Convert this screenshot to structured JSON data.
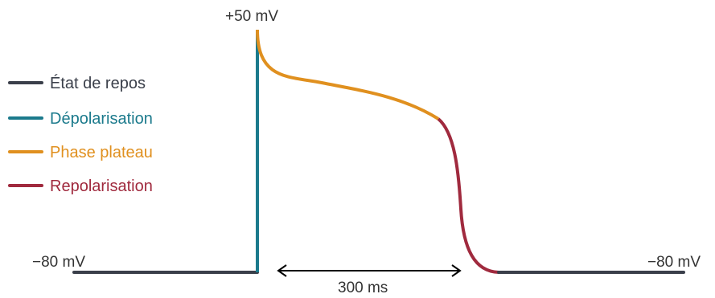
{
  "labels": {
    "peak": "+50 mV",
    "rest_left": "−80 mV",
    "rest_right": "−80 mV",
    "duration": "300 ms"
  },
  "legend": [
    {
      "label": "État de repos",
      "color": "#3a3f4a"
    },
    {
      "label": "Dépolarisation",
      "color": "#1b7a8c"
    },
    {
      "label": "Phase plateau",
      "color": "#e0901f"
    },
    {
      "label": "Repolarisation",
      "color": "#a02a3e"
    }
  ],
  "colors": {
    "rest": "#3a3f4a",
    "depolarization": "#1b7a8c",
    "plateau": "#e0901f",
    "repolarization": "#a02a3e",
    "arrow": "#000000"
  }
}
